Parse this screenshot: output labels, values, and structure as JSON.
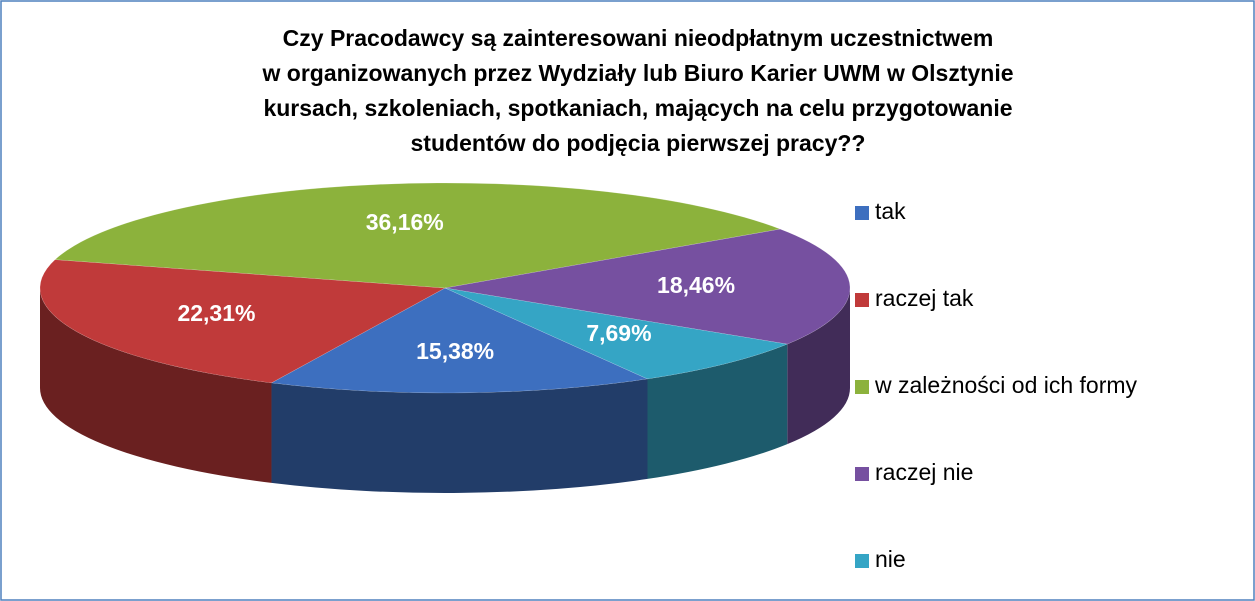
{
  "chart_data": {
    "type": "pie",
    "title": [
      "Czy Pracodawcy są zainteresowani nieodpłatnym uczestnictwem",
      "w organizowanych przez Wydziały lub Biuro Karier UWM w Olsztynie",
      "kursach, szkoleniach, spotkaniach, mających na celu przygotowanie",
      "studentów do podjęcia pierwszej pracy??"
    ],
    "categories": [
      "tak",
      "raczej tak",
      "w zależności od ich formy",
      "raczej nie",
      "nie"
    ],
    "values": [
      15.38,
      22.31,
      36.16,
      18.46,
      7.69
    ],
    "value_labels": [
      "15,38%",
      "22,31%",
      "36,16%",
      "18,46%",
      "7,69%"
    ],
    "colors": [
      "#3d6fbf",
      "#c03a3a",
      "#8cb23c",
      "#7650a0",
      "#35a5c5"
    ],
    "legend": "right"
  }
}
